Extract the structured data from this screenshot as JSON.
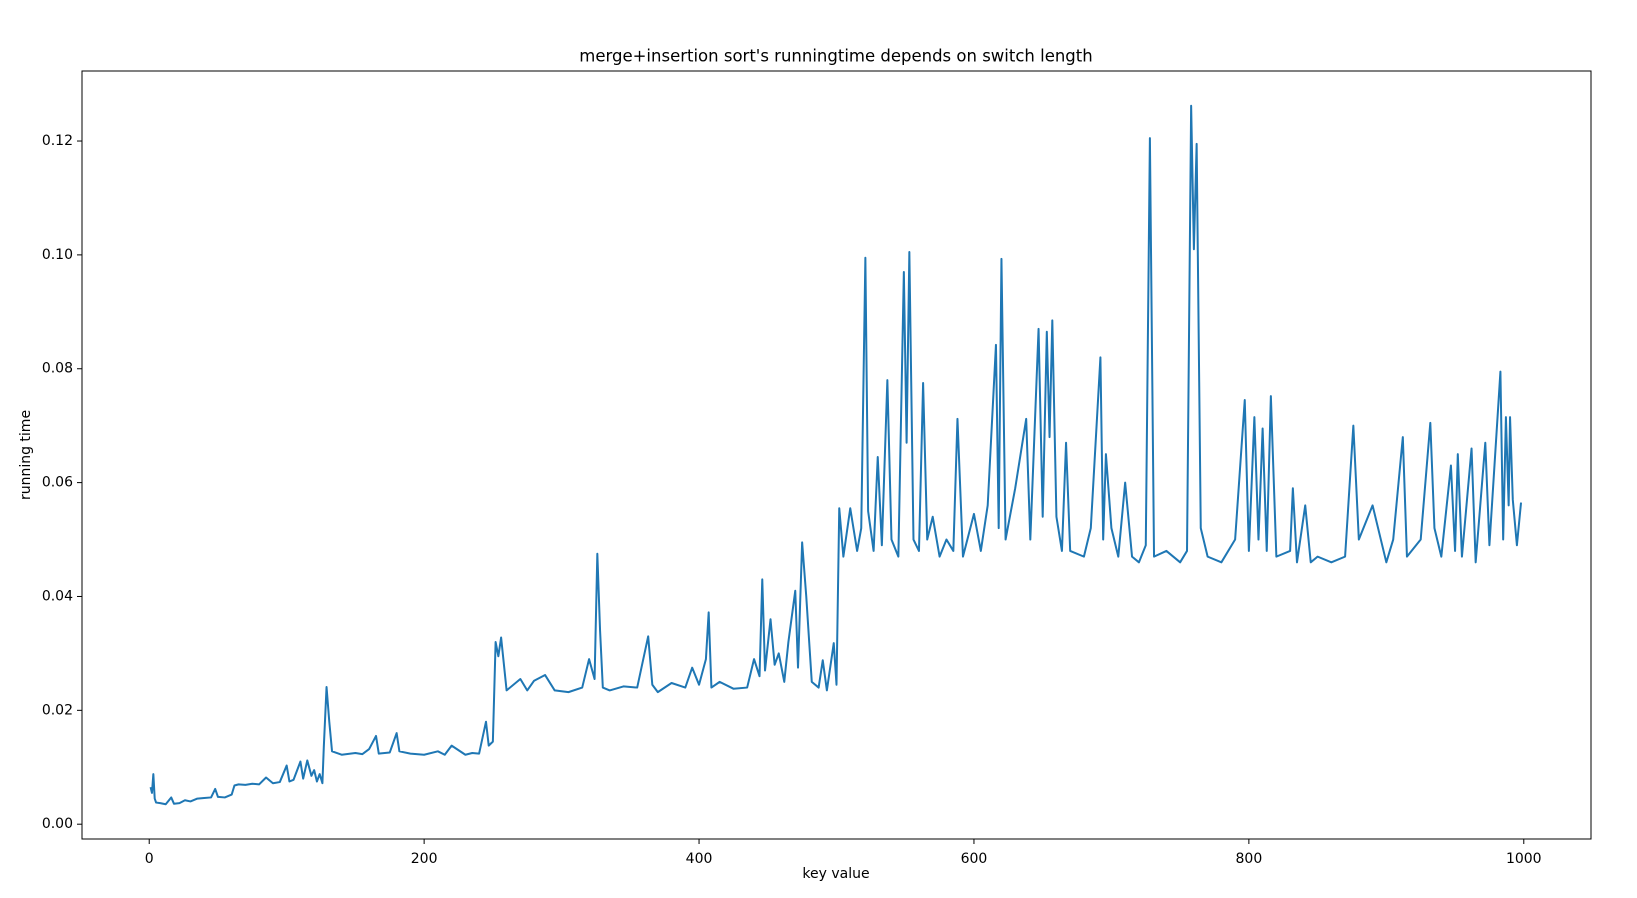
{
  "chart_data": {
    "type": "line",
    "title": "merge+insertion sort's runningtime depends on switch length",
    "xlabel": "key value",
    "ylabel": "running time",
    "xlim": [
      -48.9,
      1048.9
    ],
    "ylim": [
      -0.0026,
      0.1323
    ],
    "xticks": [
      0,
      200,
      400,
      600,
      800,
      1000
    ],
    "yticks": [
      {
        "value": 0,
        "label": "0.00"
      },
      0.02,
      0.04,
      0.06,
      0.08,
      {
        "value": 0.1,
        "label": "0.10"
      },
      0.12
    ],
    "grid": false,
    "series": [
      {
        "color": "#1f77b4",
        "x": [
          1,
          2,
          3,
          4,
          5,
          8,
          12,
          16,
          18,
          22,
          26,
          30,
          35,
          40,
          45,
          48,
          50,
          55,
          60,
          62,
          65,
          70,
          75,
          80,
          85,
          90,
          95,
          100,
          102,
          105,
          110,
          112,
          115,
          118,
          120,
          122,
          124,
          126,
          127,
          129,
          131,
          133,
          140,
          150,
          155,
          160,
          165,
          167,
          175,
          180,
          182,
          190,
          200,
          210,
          215,
          220,
          230,
          235,
          240,
          245,
          247,
          250,
          252,
          254,
          256,
          260,
          270,
          275,
          280,
          288,
          295,
          305,
          315,
          320,
          324,
          326,
          328,
          330,
          335,
          345,
          355,
          363,
          366,
          370,
          380,
          390,
          395,
          400,
          405,
          407,
          409,
          415,
          425,
          435,
          440,
          444,
          446,
          448,
          452,
          455,
          458,
          462,
          465,
          470,
          472,
          475,
          478,
          482,
          487,
          490,
          493,
          498,
          500,
          502,
          505,
          510,
          515,
          518,
          521,
          523,
          527,
          530,
          533,
          537,
          540,
          545,
          549,
          551,
          553,
          556,
          560,
          563,
          566,
          570,
          575,
          580,
          585,
          588,
          592,
          600,
          605,
          610,
          616,
          618,
          620,
          623,
          630,
          638,
          641,
          647,
          650,
          653,
          655,
          657,
          660,
          664,
          667,
          670,
          680,
          685,
          692,
          694,
          696,
          700,
          705,
          710,
          715,
          720,
          725,
          728,
          731,
          740,
          750,
          755,
          758,
          760,
          762,
          765,
          770,
          780,
          790,
          797,
          800,
          804,
          807,
          810,
          813,
          816,
          820,
          830,
          832,
          835,
          841,
          845,
          850,
          860,
          870,
          876,
          880,
          890,
          900,
          905,
          912,
          915,
          925,
          932,
          935,
          940,
          947,
          950,
          952,
          955,
          962,
          965,
          972,
          975,
          983,
          985,
          987,
          989,
          990,
          992,
          995,
          998
        ],
        "values": [
          0.0065,
          0.0055,
          0.0088,
          0.0045,
          0.0038,
          0.0037,
          0.0035,
          0.0047,
          0.0036,
          0.0037,
          0.0042,
          0.004,
          0.0045,
          0.0046,
          0.0047,
          0.0062,
          0.0048,
          0.0047,
          0.0052,
          0.0068,
          0.007,
          0.0069,
          0.0071,
          0.007,
          0.0082,
          0.0072,
          0.0074,
          0.0103,
          0.0075,
          0.0078,
          0.011,
          0.008,
          0.0112,
          0.0085,
          0.0095,
          0.0075,
          0.0088,
          0.0072,
          0.0135,
          0.0241,
          0.018,
          0.0128,
          0.0122,
          0.0125,
          0.0123,
          0.0132,
          0.0155,
          0.0124,
          0.0126,
          0.016,
          0.0128,
          0.0124,
          0.0122,
          0.0128,
          0.0122,
          0.0138,
          0.0122,
          0.0125,
          0.0124,
          0.018,
          0.0138,
          0.0145,
          0.032,
          0.0295,
          0.0328,
          0.0235,
          0.0255,
          0.0235,
          0.0252,
          0.0262,
          0.0235,
          0.0232,
          0.024,
          0.029,
          0.0255,
          0.0475,
          0.034,
          0.024,
          0.0235,
          0.0242,
          0.024,
          0.033,
          0.0245,
          0.0232,
          0.0248,
          0.024,
          0.0275,
          0.0245,
          0.029,
          0.0372,
          0.024,
          0.025,
          0.0238,
          0.024,
          0.029,
          0.026,
          0.043,
          0.027,
          0.036,
          0.028,
          0.03,
          0.025,
          0.032,
          0.041,
          0.0275,
          0.0495,
          0.04,
          0.025,
          0.024,
          0.0288,
          0.0235,
          0.0318,
          0.0245,
          0.0555,
          0.047,
          0.0555,
          0.048,
          0.052,
          0.0995,
          0.055,
          0.048,
          0.0645,
          0.049,
          0.078,
          0.05,
          0.047,
          0.097,
          0.067,
          0.1005,
          0.05,
          0.048,
          0.0775,
          0.05,
          0.054,
          0.047,
          0.05,
          0.048,
          0.0712,
          0.047,
          0.0545,
          0.048,
          0.056,
          0.0842,
          0.052,
          0.0993,
          0.05,
          0.059,
          0.0712,
          0.05,
          0.087,
          0.054,
          0.0865,
          0.068,
          0.0885,
          0.054,
          0.048,
          0.067,
          0.048,
          0.047,
          0.052,
          0.082,
          0.05,
          0.065,
          0.052,
          0.047,
          0.06,
          0.047,
          0.046,
          0.049,
          0.1205,
          0.047,
          0.048,
          0.046,
          0.048,
          0.1262,
          0.101,
          0.1195,
          0.052,
          0.047,
          0.046,
          0.05,
          0.0745,
          0.048,
          0.0715,
          0.05,
          0.0695,
          0.048,
          0.0752,
          0.047,
          0.048,
          0.059,
          0.046,
          0.056,
          0.046,
          0.047,
          0.046,
          0.047,
          0.07,
          0.05,
          0.056,
          0.046,
          0.05,
          0.068,
          0.047,
          0.05,
          0.0705,
          0.052,
          0.047,
          0.063,
          0.048,
          0.065,
          0.047,
          0.066,
          0.046,
          0.067,
          0.049,
          0.0795,
          0.05,
          0.0715,
          0.056,
          0.0715,
          0.057,
          0.049,
          0.0565
        ]
      }
    ]
  }
}
